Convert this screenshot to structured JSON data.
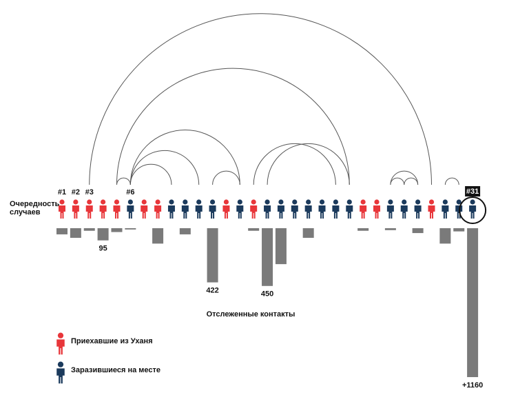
{
  "chart_data": {
    "type": "arc",
    "row_label": "Очередность случаев",
    "bars_label": "Отслеженные контакты",
    "legend": [
      {
        "name": "Приехавшие из Уханя",
        "color": "#e8363a"
      },
      {
        "name": "Заразившиеся на месте",
        "color": "#1b3a5c"
      }
    ],
    "case_labels": [
      "#1",
      "#2",
      "#3",
      null,
      null,
      "#6",
      null,
      null,
      null,
      null,
      null,
      null,
      null,
      null,
      null,
      null,
      null,
      null,
      null,
      null,
      null,
      null,
      null,
      null,
      null,
      null,
      null,
      null,
      null,
      null,
      "#31"
    ],
    "case_kinds": [
      0,
      0,
      0,
      0,
      0,
      1,
      0,
      0,
      1,
      1,
      1,
      1,
      0,
      1,
      0,
      1,
      1,
      1,
      1,
      1,
      1,
      1,
      0,
      0,
      1,
      1,
      1,
      0,
      1,
      1,
      1
    ],
    "contacts": [
      48,
      75,
      20,
      95,
      30,
      10,
      null,
      120,
      null,
      48,
      null,
      422,
      null,
      null,
      20,
      450,
      280,
      null,
      75,
      null,
      null,
      null,
      20,
      null,
      15,
      null,
      38,
      null,
      120,
      25,
      1160
    ],
    "value_labels": [
      null,
      null,
      null,
      "95",
      null,
      null,
      null,
      null,
      null,
      null,
      null,
      "422",
      null,
      null,
      null,
      "450",
      null,
      null,
      null,
      null,
      null,
      null,
      null,
      null,
      null,
      null,
      null,
      null,
      null,
      null,
      "+1160"
    ],
    "links": [
      [
        3,
        28
      ],
      [
        5,
        22
      ],
      [
        6,
        14
      ],
      [
        5,
        6
      ],
      [
        6,
        9
      ],
      [
        6,
        11
      ],
      [
        12,
        14
      ],
      [
        15,
        21
      ],
      [
        16,
        22
      ],
      [
        25,
        26
      ],
      [
        26,
        27
      ],
      [
        25,
        27
      ],
      [
        29,
        30
      ]
    ],
    "highlight": 31
  }
}
